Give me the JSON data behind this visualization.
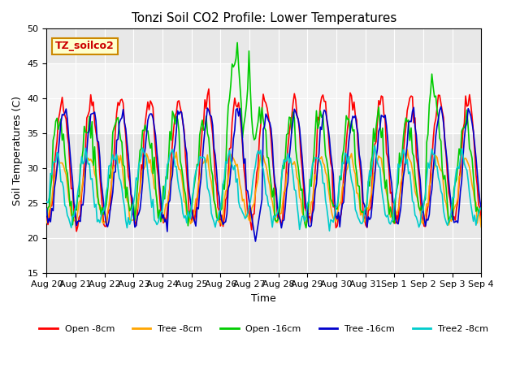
{
  "title": "Tonzi Soil CO2 Profile: Lower Temperatures",
  "xlabel": "Time",
  "ylabel": "Soil Temperatures (C)",
  "ylim": [
    15,
    50
  ],
  "yticks": [
    15,
    20,
    25,
    30,
    35,
    40,
    45,
    50
  ],
  "background_color": "#ffffff",
  "plot_bg_color": "#e8e8e8",
  "shaded_region": [
    35,
    45
  ],
  "subtitle_box": {
    "text": "TZ_soilco2",
    "bg_color": "#ffffcc",
    "border_color": "#cc8800"
  },
  "legend": [
    {
      "label": "Open -8cm",
      "color": "#ff0000"
    },
    {
      "label": "Tree -8cm",
      "color": "#ffa500"
    },
    {
      "label": "Open -16cm",
      "color": "#00cc00"
    },
    {
      "label": "Tree -16cm",
      "color": "#0000cc"
    },
    {
      "label": "Tree2 -8cm",
      "color": "#00cccc"
    }
  ],
  "x_tick_labels": [
    "Aug 20",
    "Aug 21",
    "Aug 22",
    "Aug 23",
    "Aug 24",
    "Aug 25",
    "Aug 26",
    "Aug 27",
    "Aug 28",
    "Aug 29",
    "Aug 30",
    "Aug 31",
    "Sep 1",
    "Sep 2",
    "Sep 3",
    "Sep 4"
  ],
  "n_points": 336,
  "days": 15
}
